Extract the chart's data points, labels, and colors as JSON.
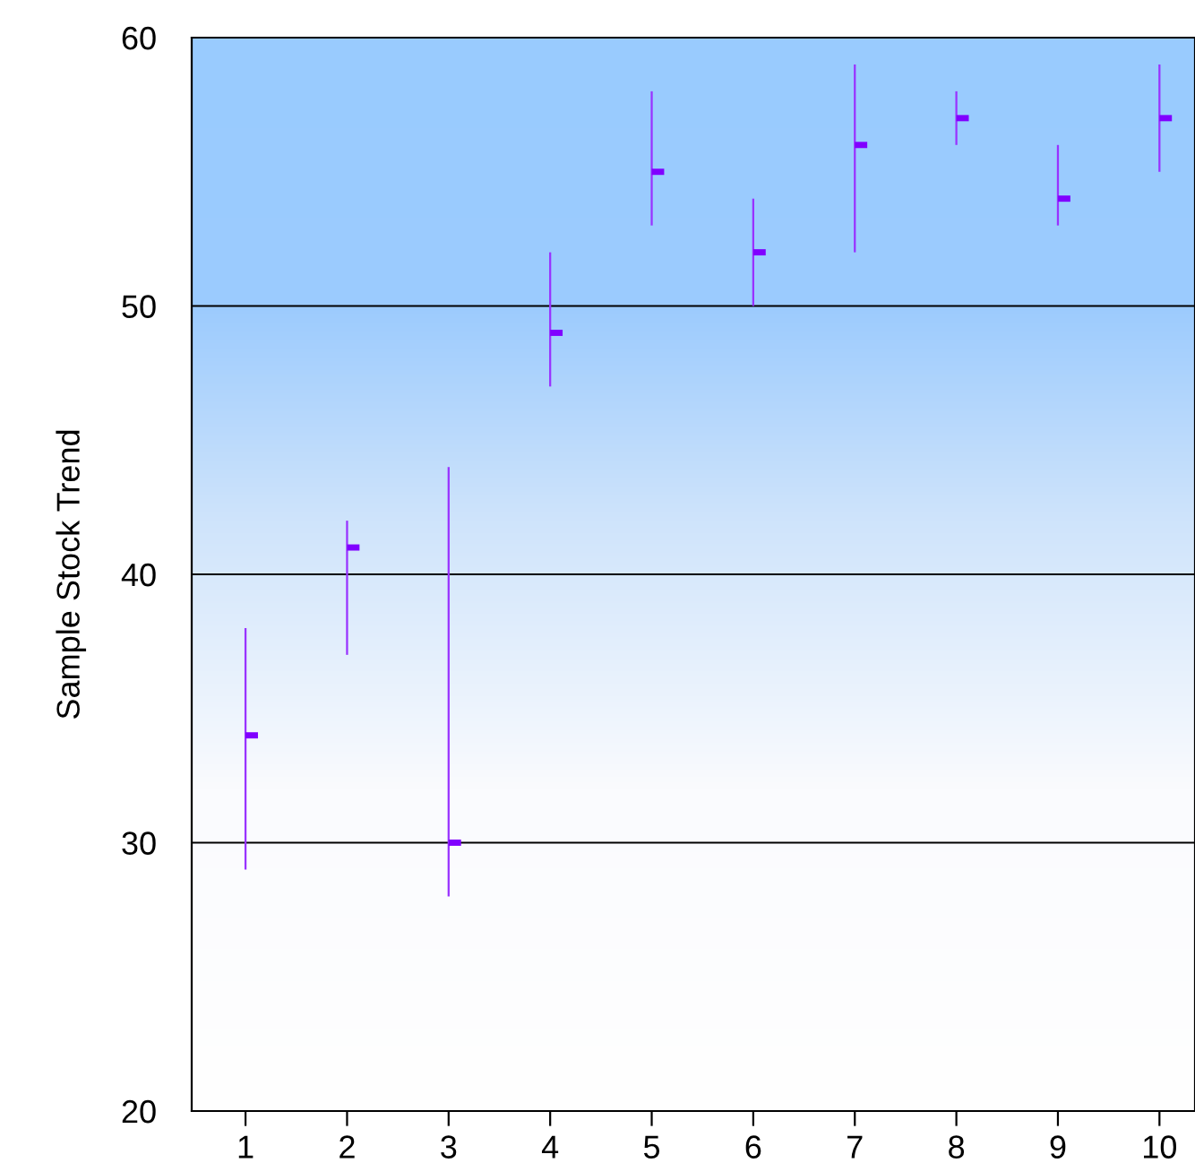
{
  "chart_data": {
    "type": "bar",
    "ylabel": "Sample Stock Trend",
    "categories": [
      "1",
      "2",
      "3",
      "4",
      "5",
      "6",
      "7",
      "8",
      "9",
      "10"
    ],
    "series": [
      {
        "color": "#9933ff",
        "base": [
          29,
          37,
          28,
          47,
          53,
          50,
          52,
          56,
          53,
          55
        ],
        "values": [
          9,
          5,
          16,
          5,
          5,
          4,
          7,
          2,
          3,
          4
        ]
      },
      {
        "type": "scatter",
        "color": "#8000ff",
        "marker": "square",
        "x": [
          "1",
          "2",
          "3",
          "4",
          "5",
          "6",
          "7",
          "8",
          "9",
          "10"
        ],
        "values": [
          34,
          41,
          30,
          49,
          55,
          52,
          56,
          57,
          54,
          57
        ]
      }
    ],
    "ylim": [
      20,
      60
    ],
    "yticks": [
      20,
      30,
      40,
      50,
      60
    ],
    "grid": "y"
  }
}
